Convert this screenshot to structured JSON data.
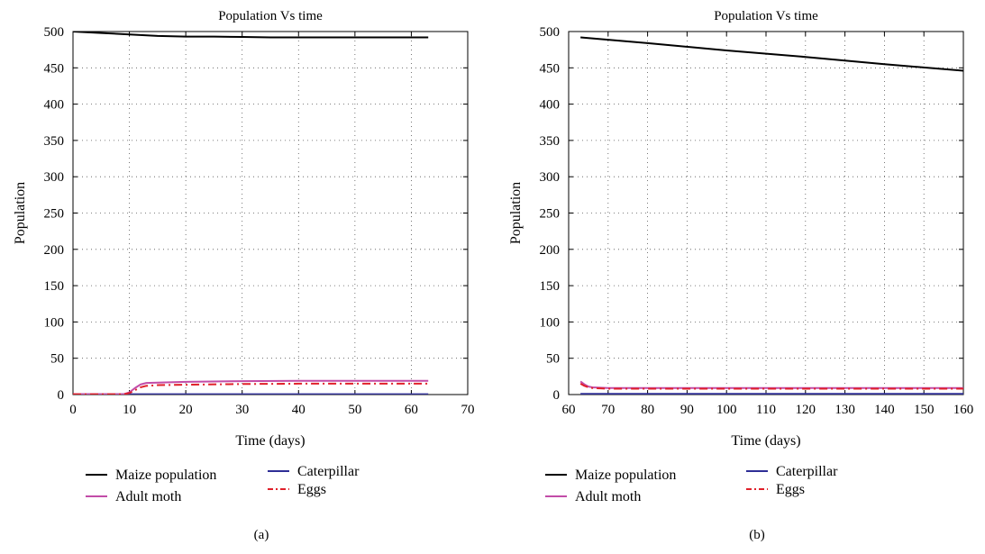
{
  "chart_data": [
    {
      "type": "line",
      "panel_label": "(a)",
      "title": "Population Vs time",
      "xlabel": "Time (days)",
      "ylabel": "Population",
      "xlim": [
        0,
        70
      ],
      "ylim": [
        0,
        500
      ],
      "xticks": [
        "0",
        "10",
        "20",
        "30",
        "40",
        "50",
        "60",
        "70"
      ],
      "yticks": [
        "0",
        "50",
        "100",
        "150",
        "200",
        "250",
        "300",
        "350",
        "400",
        "450",
        "500"
      ],
      "grid": true,
      "legend_position": "below",
      "series": [
        {
          "name": "Maize population",
          "color": "#000000",
          "dash": "solid",
          "x": [
            0,
            5,
            10,
            15,
            20,
            25,
            30,
            35,
            40,
            45,
            50,
            55,
            60,
            63
          ],
          "y": [
            500,
            498,
            496,
            494,
            493,
            493,
            492.5,
            492,
            492,
            492,
            492,
            492,
            492,
            492
          ]
        },
        {
          "name": "Caterpillar",
          "color": "#2e2e96",
          "dash": "solid",
          "x": [
            0,
            10,
            20,
            30,
            40,
            50,
            60,
            63
          ],
          "y": [
            0.5,
            0.5,
            0.5,
            0.5,
            0.5,
            0.5,
            0.5,
            0.5
          ]
        },
        {
          "name": "Adult moth",
          "color": "#c24ca8",
          "dash": "solid",
          "x": [
            0,
            9,
            10,
            11,
            12,
            13,
            15,
            20,
            30,
            40,
            50,
            60,
            63
          ],
          "y": [
            0.5,
            0.5,
            3,
            9,
            14,
            16,
            16.5,
            17.5,
            18.5,
            19,
            19,
            19,
            19
          ]
        },
        {
          "name": "Eggs",
          "color": "#e0202a",
          "dash": "dashdot",
          "x": [
            0,
            9,
            10,
            11,
            12,
            13,
            15,
            20,
            30,
            40,
            50,
            60,
            63
          ],
          "y": [
            0.5,
            0.5,
            2,
            6,
            10,
            12,
            13,
            13.5,
            14.5,
            15,
            15,
            15,
            15
          ]
        }
      ]
    },
    {
      "type": "line",
      "panel_label": "(b)",
      "title": "Population Vs time",
      "xlabel": "Time (days)",
      "ylabel": "Population",
      "xlim": [
        60,
        160
      ],
      "ylim": [
        0,
        500
      ],
      "xticks": [
        "60",
        "70",
        "80",
        "90",
        "100",
        "110",
        "120",
        "130",
        "140",
        "150",
        "160"
      ],
      "yticks": [
        "0",
        "50",
        "100",
        "150",
        "200",
        "250",
        "300",
        "350",
        "400",
        "450",
        "500"
      ],
      "grid": true,
      "legend_position": "below",
      "series": [
        {
          "name": "Maize population",
          "color": "#000000",
          "dash": "solid",
          "x": [
            63,
            80,
            100,
            120,
            140,
            160
          ],
          "y": [
            492,
            484,
            474,
            465,
            455,
            446
          ]
        },
        {
          "name": "Caterpillar",
          "color": "#2e2e96",
          "dash": "solid",
          "x": [
            63,
            80,
            100,
            120,
            140,
            160
          ],
          "y": [
            1,
            1,
            1,
            1,
            1,
            1
          ]
        },
        {
          "name": "Adult moth",
          "color": "#c24ca8",
          "dash": "solid",
          "x": [
            63,
            64,
            65,
            66,
            68,
            70,
            80,
            100,
            120,
            140,
            160
          ],
          "y": [
            18,
            14,
            11,
            10,
            9.5,
            9,
            9,
            9,
            9,
            9,
            9
          ]
        },
        {
          "name": "Eggs",
          "color": "#e0202a",
          "dash": "dashdot",
          "x": [
            63,
            64,
            65,
            66,
            68,
            70,
            80,
            100,
            120,
            140,
            160
          ],
          "y": [
            15,
            12,
            10,
            9,
            8.5,
            8,
            8,
            8,
            8,
            8,
            8
          ]
        }
      ]
    }
  ]
}
